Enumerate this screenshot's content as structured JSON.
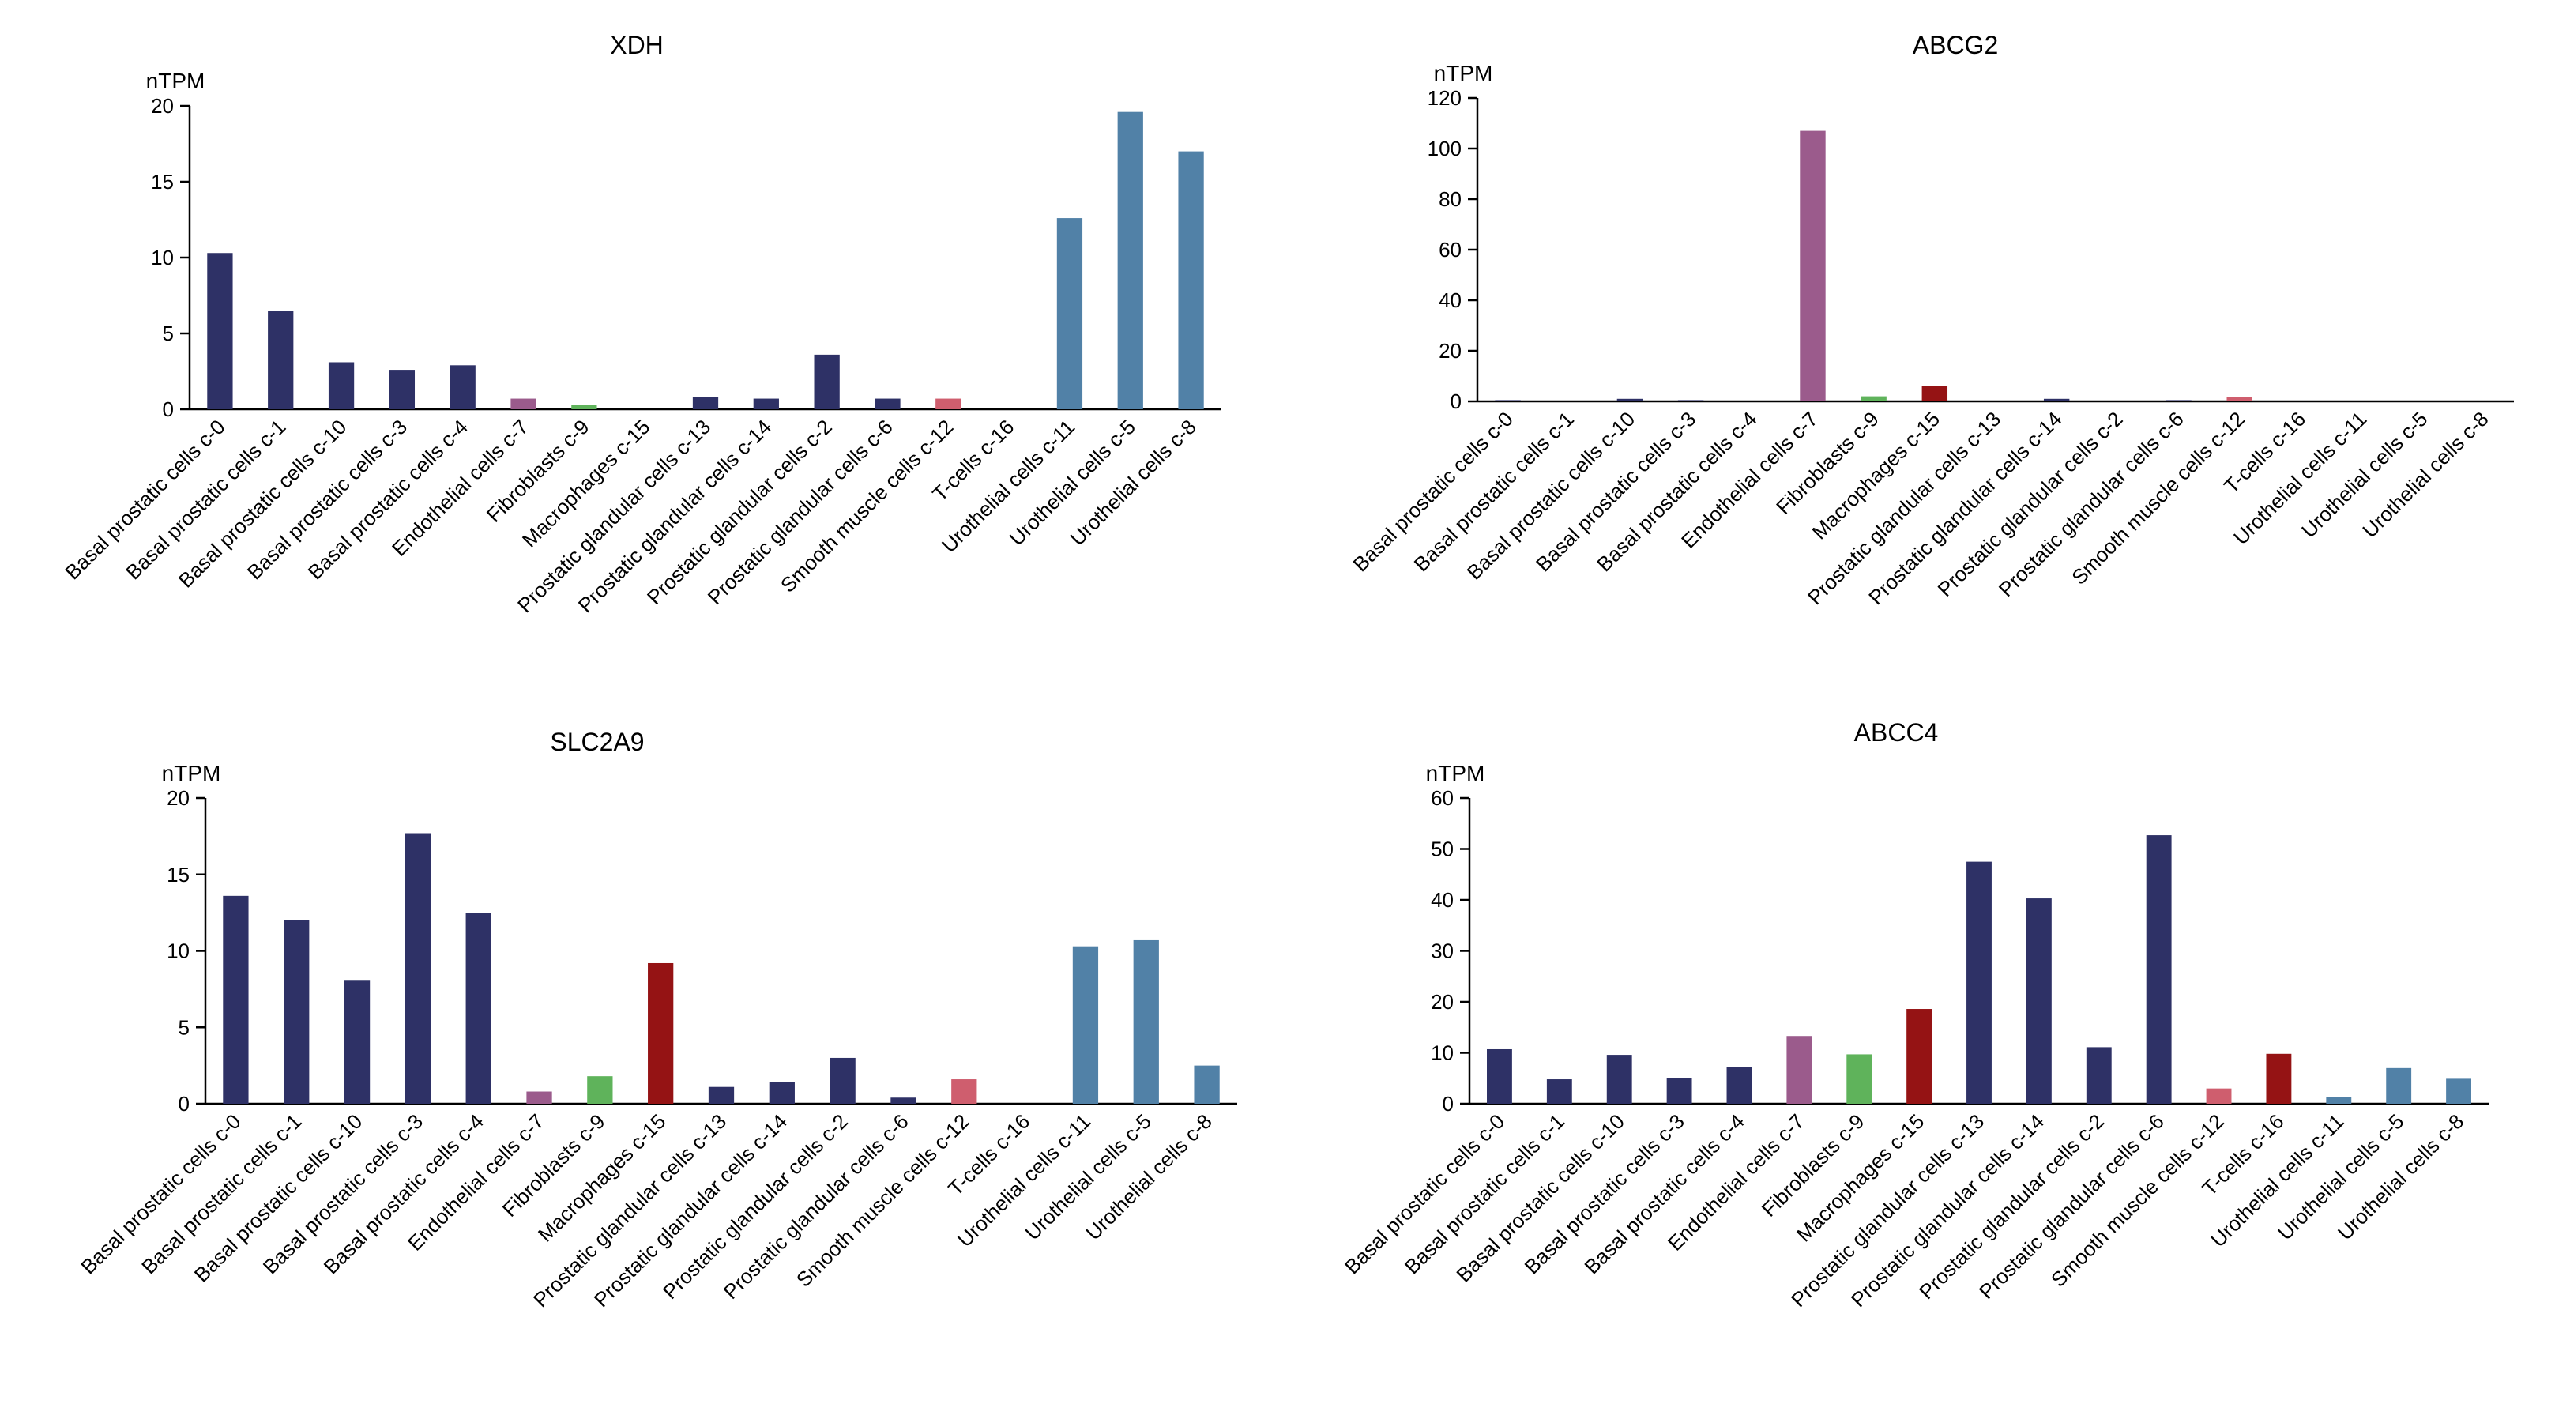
{
  "colors": {
    "basal": "#2e3166",
    "endothelial": "#9b5b8c",
    "fibroblasts": "#5fb35b",
    "macrophages": "#951314",
    "glandular": "#2e3166",
    "smooth_muscle": "#cf5e6e",
    "tcells": "#951314",
    "urothelial": "#5181a7"
  },
  "chart_data": [
    {
      "type": "bar",
      "title": "XDH",
      "ylabel": "nTPM",
      "ylim": [
        0,
        20
      ],
      "yticks": [
        0,
        5,
        10,
        15,
        20
      ],
      "categories": [
        "Basal prostatic cells c-0",
        "Basal prostatic cells c-1",
        "Basal prostatic cells c-10",
        "Basal prostatic cells c-3",
        "Basal prostatic cells c-4",
        "Endothelial cells c-7",
        "Fibroblasts c-9",
        "Macrophages c-15",
        "Prostatic glandular cells c-13",
        "Prostatic glandular cells c-14",
        "Prostatic glandular cells c-2",
        "Prostatic glandular cells c-6",
        "Smooth muscle cells c-12",
        "T-cells c-16",
        "Urothelial cells c-11",
        "Urothelial cells c-5",
        "Urothelial cells c-8"
      ],
      "values": [
        10.3,
        6.5,
        3.1,
        2.6,
        2.9,
        0.7,
        0.3,
        0,
        0.8,
        0.7,
        3.6,
        0.7,
        0.7,
        0,
        12.6,
        19.6,
        17.0
      ],
      "bar_colors": [
        "#2e3166",
        "#2e3166",
        "#2e3166",
        "#2e3166",
        "#2e3166",
        "#9b5b8c",
        "#5fb35b",
        "#951314",
        "#2e3166",
        "#2e3166",
        "#2e3166",
        "#2e3166",
        "#cf5e6e",
        "#951314",
        "#5181a7",
        "#5181a7",
        "#5181a7"
      ]
    },
    {
      "type": "bar",
      "title": "ABCG2",
      "ylabel": "nTPM",
      "ylim": [
        0,
        120
      ],
      "yticks": [
        0,
        20,
        40,
        60,
        80,
        100,
        120
      ],
      "categories": [
        "Basal prostatic cells c-0",
        "Basal prostatic cells c-1",
        "Basal prostatic cells c-10",
        "Basal prostatic cells c-3",
        "Basal prostatic cells c-4",
        "Endothelial cells c-7",
        "Fibroblasts c-9",
        "Macrophages c-15",
        "Prostatic glandular cells c-13",
        "Prostatic glandular cells c-14",
        "Prostatic glandular cells c-2",
        "Prostatic glandular cells c-6",
        "Smooth muscle cells c-12",
        "T-cells c-16",
        "Urothelial cells c-11",
        "Urothelial cells c-5",
        "Urothelial cells c-8"
      ],
      "values": [
        0.5,
        0,
        1.0,
        0.5,
        0,
        107,
        2.0,
        6.2,
        0.3,
        1.0,
        0,
        0.5,
        1.8,
        0,
        0,
        0,
        0.3
      ],
      "bar_colors": [
        "#2e3166",
        "#2e3166",
        "#2e3166",
        "#2e3166",
        "#2e3166",
        "#9b5b8c",
        "#5fb35b",
        "#951314",
        "#2e3166",
        "#2e3166",
        "#2e3166",
        "#2e3166",
        "#cf5e6e",
        "#951314",
        "#5181a7",
        "#5181a7",
        "#5181a7"
      ]
    },
    {
      "type": "bar",
      "title": "SLC2A9",
      "ylabel": "nTPM",
      "ylim": [
        0,
        20
      ],
      "yticks": [
        0,
        5,
        10,
        15,
        20
      ],
      "categories": [
        "Basal prostatic cells c-0",
        "Basal prostatic cells c-1",
        "Basal prostatic cells c-10",
        "Basal prostatic cells c-3",
        "Basal prostatic cells c-4",
        "Endothelial cells c-7",
        "Fibroblasts c-9",
        "Macrophages c-15",
        "Prostatic glandular cells c-13",
        "Prostatic glandular cells c-14",
        "Prostatic glandular cells c-2",
        "Prostatic glandular cells c-6",
        "Smooth muscle cells c-12",
        "T-cells c-16",
        "Urothelial cells c-11",
        "Urothelial cells c-5",
        "Urothelial cells c-8"
      ],
      "values": [
        13.6,
        12.0,
        8.1,
        17.7,
        12.5,
        0.8,
        1.8,
        9.2,
        1.1,
        1.4,
        3.0,
        0.4,
        1.6,
        0,
        10.3,
        10.7,
        2.5
      ],
      "bar_colors": [
        "#2e3166",
        "#2e3166",
        "#2e3166",
        "#2e3166",
        "#2e3166",
        "#9b5b8c",
        "#5fb35b",
        "#951314",
        "#2e3166",
        "#2e3166",
        "#2e3166",
        "#2e3166",
        "#cf5e6e",
        "#951314",
        "#5181a7",
        "#5181a7",
        "#5181a7"
      ]
    },
    {
      "type": "bar",
      "title": "ABCC4",
      "ylabel": "nTPM",
      "ylim": [
        0,
        60
      ],
      "yticks": [
        0,
        10,
        20,
        30,
        40,
        50,
        60
      ],
      "categories": [
        "Basal prostatic cells c-0",
        "Basal prostatic cells c-1",
        "Basal prostatic cells c-10",
        "Basal prostatic cells c-3",
        "Basal prostatic cells c-4",
        "Endothelial cells c-7",
        "Fibroblasts c-9",
        "Macrophages c-15",
        "Prostatic glandular cells c-13",
        "Prostatic glandular cells c-14",
        "Prostatic glandular cells c-2",
        "Prostatic glandular cells c-6",
        "Smooth muscle cells c-12",
        "T-cells c-16",
        "Urothelial cells c-11",
        "Urothelial cells c-5",
        "Urothelial cells c-8"
      ],
      "values": [
        10.7,
        4.8,
        9.6,
        5.0,
        7.2,
        13.3,
        9.7,
        18.6,
        47.5,
        40.3,
        11.1,
        52.7,
        3.0,
        9.8,
        1.3,
        7.0,
        4.9
      ],
      "bar_colors": [
        "#2e3166",
        "#2e3166",
        "#2e3166",
        "#2e3166",
        "#2e3166",
        "#9b5b8c",
        "#5fb35b",
        "#951314",
        "#2e3166",
        "#2e3166",
        "#2e3166",
        "#2e3166",
        "#cf5e6e",
        "#951314",
        "#5181a7",
        "#5181a7",
        "#5181a7"
      ]
    }
  ]
}
